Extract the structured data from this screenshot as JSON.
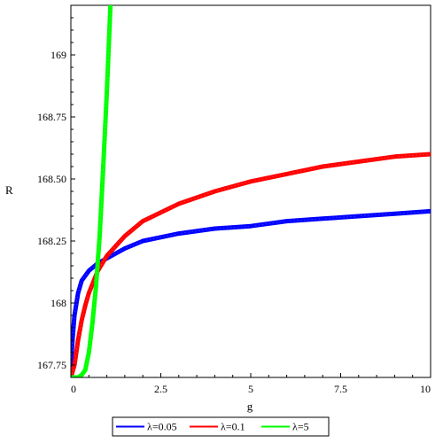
{
  "chart_data": {
    "type": "line",
    "title": "",
    "xlabel": "g",
    "ylabel": "R",
    "xlim": [
      0,
      10
    ],
    "ylim": [
      167.7,
      169.2
    ],
    "x_ticks": [
      0,
      2.5,
      5,
      7.5,
      10
    ],
    "x_tick_labels": [
      "0",
      "2.5",
      "5",
      "7.5",
      "10"
    ],
    "y_ticks": [
      167.75,
      168,
      168.25,
      168.5,
      168.75,
      169
    ],
    "y_tick_labels": [
      "167.75",
      "168",
      "168.25",
      "168.50",
      "168.75",
      "169"
    ],
    "grid": false,
    "legend_position": "bottom",
    "series": [
      {
        "name": "λ=0.05",
        "color": "#0000ff",
        "x": [
          0,
          0.05,
          0.1,
          0.2,
          0.3,
          0.5,
          0.75,
          1,
          1.5,
          2,
          3,
          4,
          5,
          6,
          7,
          8,
          9,
          10
        ],
        "y": [
          167.75,
          167.86,
          167.95,
          168.04,
          168.09,
          168.13,
          168.16,
          168.18,
          168.22,
          168.25,
          168.28,
          168.3,
          168.31,
          168.33,
          168.34,
          168.35,
          168.36,
          168.37
        ]
      },
      {
        "name": "λ=0.1",
        "color": "#ff0000",
        "x": [
          0,
          0.1,
          0.2,
          0.3,
          0.4,
          0.5,
          0.75,
          1,
          1.5,
          2,
          3,
          4,
          5,
          6,
          7,
          8,
          9,
          10
        ],
        "y": [
          167.7,
          167.75,
          167.85,
          167.93,
          167.99,
          168.04,
          168.13,
          168.19,
          168.27,
          168.33,
          168.4,
          168.45,
          168.49,
          168.52,
          168.55,
          168.57,
          168.59,
          168.6
        ]
      },
      {
        "name": "λ=5",
        "color": "#00ff00",
        "x": [
          0.05,
          0.2,
          0.3,
          0.4,
          0.5,
          0.6,
          0.7,
          0.8,
          0.9,
          1.0,
          1.1
        ],
        "y": [
          167.7,
          167.7,
          167.71,
          167.73,
          167.8,
          167.92,
          168.07,
          168.27,
          168.55,
          168.85,
          169.2
        ]
      }
    ]
  }
}
